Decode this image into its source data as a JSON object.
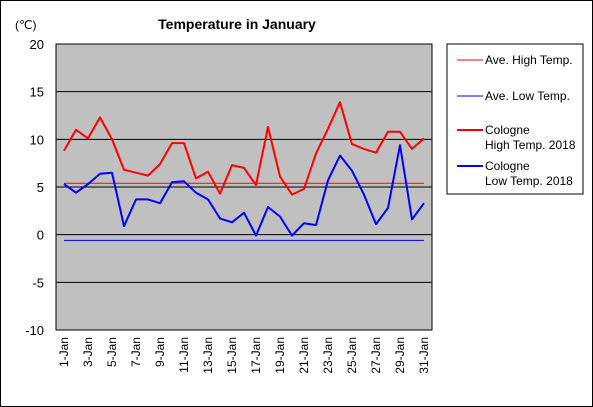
{
  "chart_data": {
    "type": "line",
    "title": "Temperature in January",
    "y_unit": "(℃)",
    "ylim": [
      -10,
      20
    ],
    "yticks": [
      "20",
      "15",
      "10",
      "5",
      "0",
      "-5",
      "-10"
    ],
    "x": [
      "1-Jan",
      "2-Jan",
      "3-Jan",
      "4-Jan",
      "5-Jan",
      "6-Jan",
      "7-Jan",
      "8-Jan",
      "9-Jan",
      "10-Jan",
      "11-Jan",
      "12-Jan",
      "13-Jan",
      "14-Jan",
      "15-Jan",
      "16-Jan",
      "17-Jan",
      "18-Jan",
      "19-Jan",
      "20-Jan",
      "21-Jan",
      "22-Jan",
      "23-Jan",
      "24-Jan",
      "25-Jan",
      "26-Jan",
      "27-Jan",
      "28-Jan",
      "29-Jan",
      "30-Jan",
      "31-Jan"
    ],
    "xtick_labels": [
      "1-Jan",
      "3-Jan",
      "5-Jan",
      "7-Jan",
      "9-Jan",
      "11-Jan",
      "13-Jan",
      "15-Jan",
      "17-Jan",
      "19-Jan",
      "21-Jan",
      "23-Jan",
      "25-Jan",
      "27-Jan",
      "29-Jan",
      "31-Jan"
    ],
    "grid": true,
    "legend_position": "right",
    "background_color": "#c0c0c0",
    "series": [
      {
        "name": "Ave. High Temp.",
        "color": "#ff0000",
        "width": 1,
        "values": [
          5.4,
          5.4,
          5.4,
          5.4,
          5.4,
          5.4,
          5.4,
          5.4,
          5.4,
          5.4,
          5.4,
          5.4,
          5.4,
          5.4,
          5.4,
          5.4,
          5.4,
          5.4,
          5.4,
          5.4,
          5.4,
          5.4,
          5.4,
          5.4,
          5.4,
          5.4,
          5.4,
          5.4,
          5.4,
          5.4,
          5.4
        ]
      },
      {
        "name": "Ave. Low Temp.",
        "color": "#0000ff",
        "width": 1,
        "values": [
          -0.6,
          -0.6,
          -0.6,
          -0.6,
          -0.6,
          -0.6,
          -0.6,
          -0.6,
          -0.6,
          -0.6,
          -0.6,
          -0.6,
          -0.6,
          -0.6,
          -0.6,
          -0.6,
          -0.6,
          -0.6,
          -0.6,
          -0.6,
          -0.6,
          -0.6,
          -0.6,
          -0.6,
          -0.6,
          -0.6,
          -0.6,
          -0.6,
          -0.6,
          -0.6,
          -0.6
        ]
      },
      {
        "name": "Cologne High Temp. 2018",
        "legend_lines": [
          "Cologne",
          "High Temp. 2018"
        ],
        "color": "#ff0000",
        "width": 2,
        "values": [
          8.8,
          11.0,
          10.1,
          12.3,
          10.0,
          6.8,
          6.5,
          6.2,
          7.4,
          9.6,
          9.6,
          5.9,
          6.6,
          4.3,
          7.3,
          7.0,
          5.2,
          11.3,
          6.1,
          4.2,
          4.8,
          8.5,
          11.1,
          13.9,
          9.5,
          9.0,
          8.6,
          10.8,
          10.8,
          9.0,
          10.1
        ]
      },
      {
        "name": "Cologne Low Temp. 2018",
        "legend_lines": [
          "Cologne",
          "Low Temp. 2018"
        ],
        "color": "#0000ff",
        "width": 2,
        "values": [
          5.3,
          4.4,
          5.3,
          6.4,
          6.5,
          0.9,
          3.7,
          3.7,
          3.3,
          5.5,
          5.6,
          4.4,
          3.7,
          1.7,
          1.3,
          2.3,
          -0.1,
          2.9,
          1.9,
          -0.1,
          1.2,
          1.0,
          5.7,
          8.3,
          6.7,
          4.2,
          1.1,
          2.8,
          9.4,
          1.6,
          3.3
        ]
      }
    ]
  }
}
